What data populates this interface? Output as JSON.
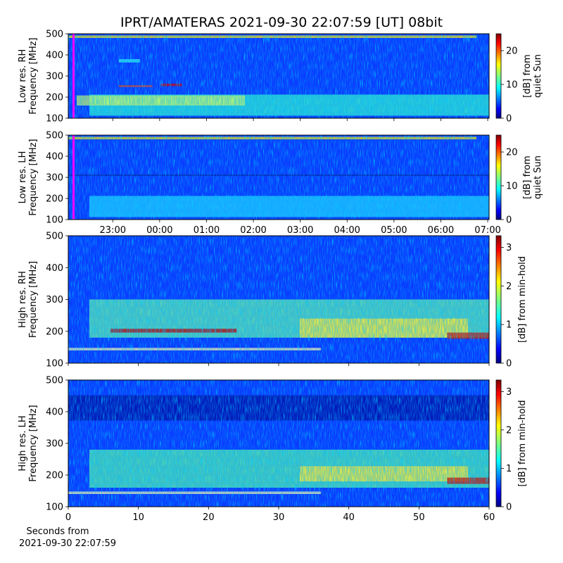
{
  "chart_data": {
    "type": "spectrogram",
    "title": "IPRT/AMATERAS 2021-09-30 22:07:59 [UT]   08bit",
    "time_axis": {
      "xlim": [
        22.05,
        31.03
      ],
      "xticks": [
        {
          "value": 23,
          "label": "23:00"
        },
        {
          "value": 24,
          "label": "00:00"
        },
        {
          "value": 25,
          "label": "01:00"
        },
        {
          "value": 26,
          "label": "02:00"
        },
        {
          "value": 27,
          "label": "03:00"
        },
        {
          "value": 28,
          "label": "04:00"
        },
        {
          "value": 29,
          "label": "05:00"
        },
        {
          "value": 30,
          "label": "06:00"
        },
        {
          "value": 31,
          "label": "07:00"
        }
      ]
    },
    "seconds_axis": {
      "xlim": [
        0,
        60
      ],
      "xticks": [
        0,
        10,
        20,
        30,
        40,
        50,
        60
      ],
      "xlabel": [
        "Seconds from",
        "2021-09-30 22:07:59"
      ]
    },
    "panels": [
      {
        "ylabel": [
          "Low res. RH",
          "Frequency [MHz]"
        ],
        "ylim": [
          100,
          500
        ],
        "yticks": [
          100,
          200,
          300,
          400,
          500
        ],
        "colorbar": {
          "label": [
            "[dB] from",
            "quiet Sun"
          ],
          "lim": [
            0,
            25
          ],
          "ticks": [
            0,
            10,
            20
          ]
        }
      },
      {
        "ylabel": [
          "Low res. LH",
          "Frequency [MHz]"
        ],
        "ylim": [
          100,
          500
        ],
        "yticks": [
          100,
          200,
          300,
          400,
          500
        ],
        "colorbar": {
          "label": [
            "[dB] from",
            "quiet Sun"
          ],
          "lim": [
            0,
            25
          ],
          "ticks": [
            0,
            10,
            20
          ]
        }
      },
      {
        "ylabel": [
          "High res. RH",
          "Frequency [MHz]"
        ],
        "ylim": [
          100,
          500
        ],
        "yticks": [
          100,
          200,
          300,
          400,
          500
        ],
        "colorbar": {
          "label": [
            "[dB] from min-hold"
          ],
          "lim": [
            0,
            3.3
          ],
          "ticks": [
            0,
            1,
            2,
            3
          ]
        }
      },
      {
        "ylabel": [
          "High res. LH",
          "Frequency [MHz]"
        ],
        "ylim": [
          100,
          500
        ],
        "yticks": [
          100,
          200,
          300,
          400,
          500
        ],
        "colorbar": {
          "label": [
            "[dB] from min-hold"
          ],
          "lim": [
            0,
            3.3
          ],
          "ticks": [
            0,
            1,
            2,
            3
          ]
        }
      }
    ]
  }
}
